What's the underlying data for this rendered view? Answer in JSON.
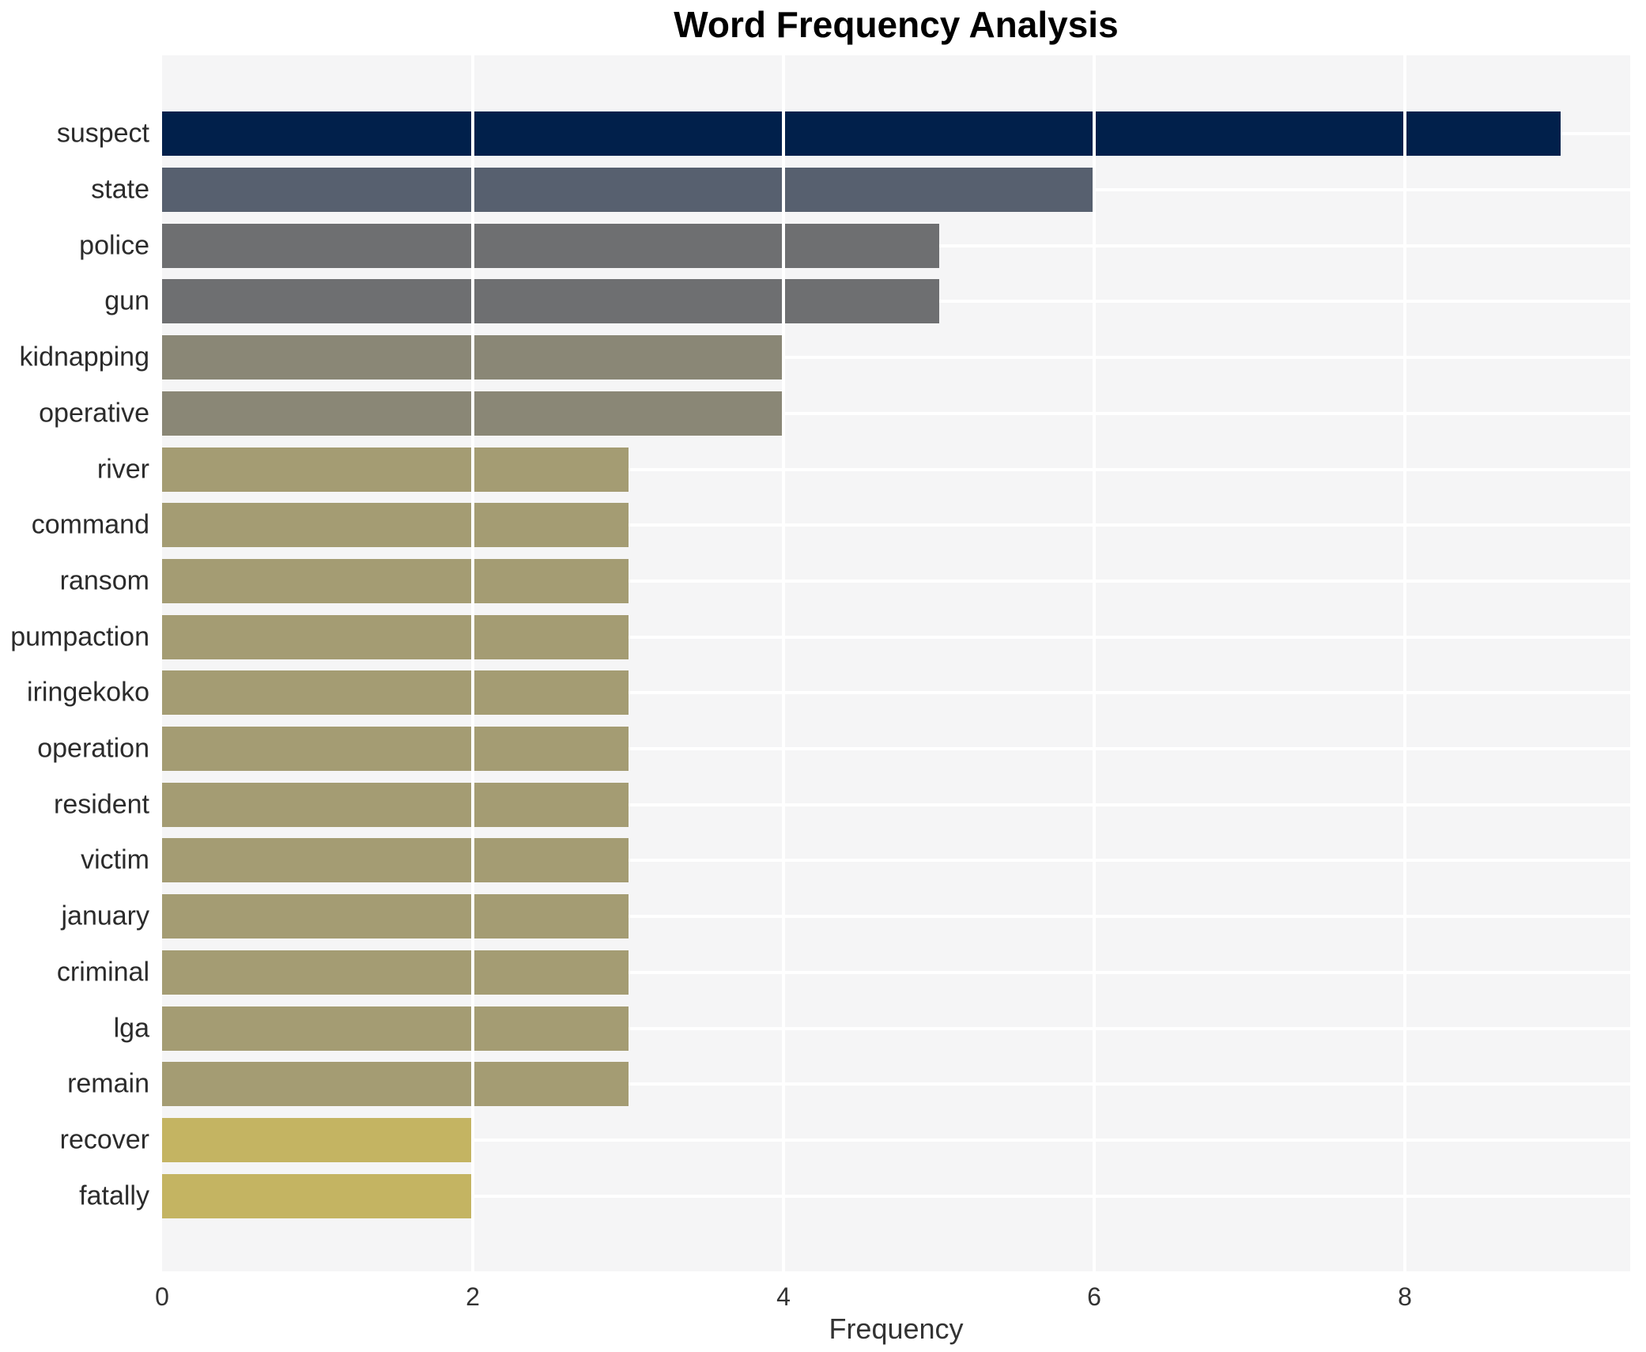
{
  "chart_data": {
    "type": "bar",
    "orientation": "horizontal",
    "title": "Word Frequency Analysis",
    "xlabel": "Frequency",
    "ylabel": "",
    "categories": [
      "suspect",
      "state",
      "police",
      "gun",
      "kidnapping",
      "operative",
      "river",
      "command",
      "ransom",
      "pumpaction",
      "iringekoko",
      "operation",
      "resident",
      "victim",
      "january",
      "criminal",
      "lga",
      "remain",
      "recover",
      "fatally"
    ],
    "values": [
      9,
      6,
      5,
      5,
      4,
      4,
      3,
      3,
      3,
      3,
      3,
      3,
      3,
      3,
      3,
      3,
      3,
      3,
      2,
      2
    ],
    "bar_colors": [
      "#01204b",
      "#57606f",
      "#6e6f71",
      "#6e6f71",
      "#8a8776",
      "#8a8776",
      "#a49c73",
      "#a49c73",
      "#a49c73",
      "#a49c73",
      "#a49c73",
      "#a49c73",
      "#a49c73",
      "#a49c73",
      "#a49c73",
      "#a49c73",
      "#a49c73",
      "#a49c73",
      "#c4b462",
      "#c4b462"
    ],
    "xticks": [
      0,
      2,
      4,
      6,
      8
    ],
    "xlim": [
      0,
      9.45
    ],
    "grid": true,
    "legend": "none",
    "plot_bg": "#f5f5f6",
    "grid_color": "#ffffff"
  }
}
